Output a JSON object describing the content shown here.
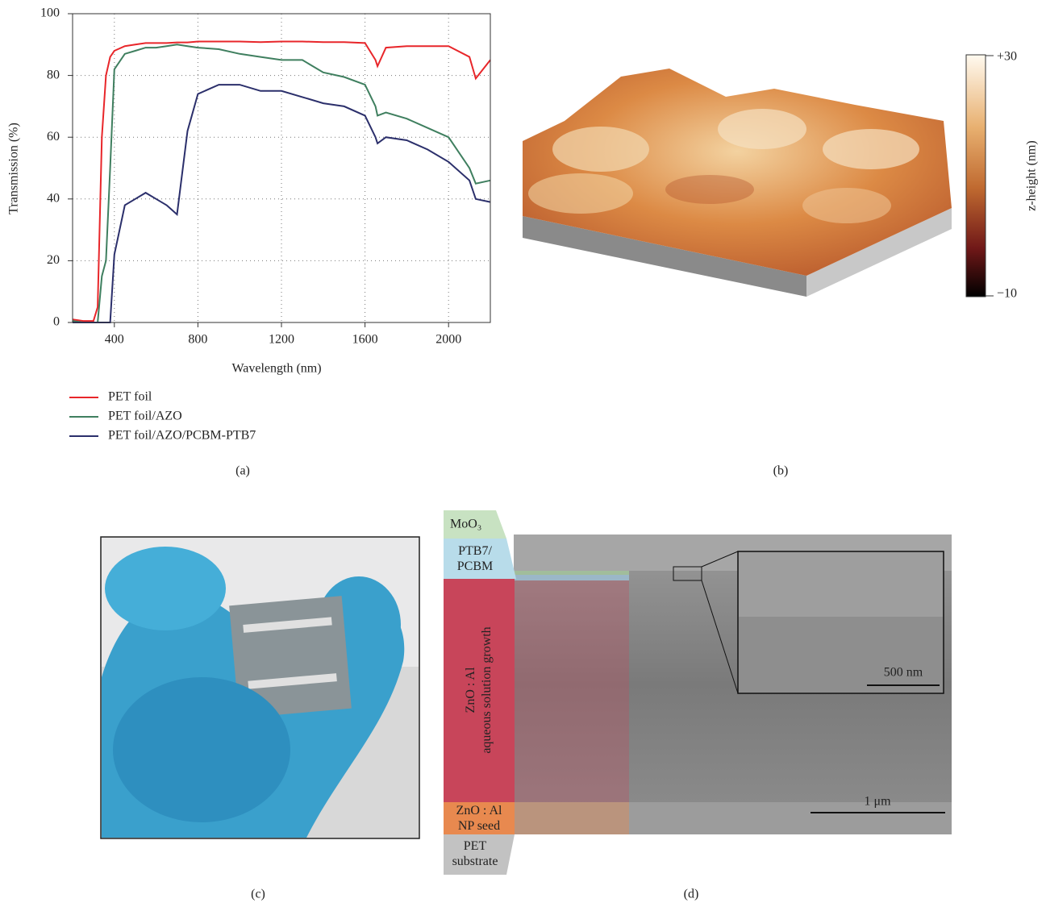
{
  "chart_data": {
    "type": "line",
    "x_label": "Wavelength (nm)",
    "y_label": "Transmission (%)",
    "x": [
      200,
      250,
      300,
      320,
      340,
      360,
      380,
      400,
      450,
      500,
      550,
      600,
      650,
      700,
      750,
      800,
      900,
      1000,
      1100,
      1200,
      1300,
      1400,
      1500,
      1600,
      1650,
      1660,
      1700,
      1800,
      1900,
      2000,
      2100,
      2130,
      2200
    ],
    "series": [
      {
        "name": "PET foil",
        "color": "#e8262a",
        "values": [
          1,
          0.5,
          0.5,
          5,
          60,
          80,
          86,
          88,
          89.5,
          90,
          90.5,
          90.5,
          90.5,
          90.7,
          90.7,
          91,
          91,
          91,
          90.8,
          91,
          91,
          90.8,
          90.8,
          90.5,
          85,
          83,
          89,
          89.5,
          89.5,
          89.5,
          86,
          79,
          85
        ]
      },
      {
        "name": "PET foil/AZO",
        "color": "#3f7f5f",
        "values": [
          0.5,
          0,
          0,
          0,
          15,
          20,
          50,
          82,
          87,
          88,
          89,
          89,
          89.5,
          90,
          89.5,
          89,
          88.5,
          87,
          86,
          85,
          85,
          81,
          79.5,
          77,
          70,
          67,
          68,
          66,
          63,
          60,
          50,
          45,
          46
        ]
      },
      {
        "name": "PET foil/AZO/PCBM-PTB7",
        "color": "#2b2f6b",
        "values": [
          0,
          0,
          0,
          0,
          0,
          0,
          0,
          22,
          38,
          40,
          42,
          40,
          38,
          35,
          62,
          74,
          77,
          77,
          75,
          75,
          73,
          71,
          70,
          67,
          60,
          58,
          60,
          59,
          56,
          52,
          46,
          40,
          39
        ]
      }
    ],
    "xlim": [
      200,
      2200
    ],
    "ylim": [
      0,
      100
    ],
    "xticks": [
      400,
      800,
      1200,
      1600,
      2000
    ],
    "yticks": [
      0,
      20,
      40,
      60,
      80,
      100
    ],
    "grid": true
  },
  "panel_labels": [
    "(a)",
    "(b)",
    "(c)",
    "(d)"
  ],
  "colorbar": {
    "top_label": "+30",
    "bottom_label": "−10",
    "label": "z-height (nm)"
  },
  "sem": {
    "layers": [
      [
        "MoO₃"
      ],
      [
        "PTB7/",
        "PCBM"
      ],
      [
        "ZnO : Al",
        "aqueous solution growth"
      ],
      [
        "ZnO : Al",
        "NP seed"
      ],
      [
        "PET",
        "substrate"
      ]
    ],
    "inset_scale": "500 nm",
    "scale": "1 μm"
  }
}
